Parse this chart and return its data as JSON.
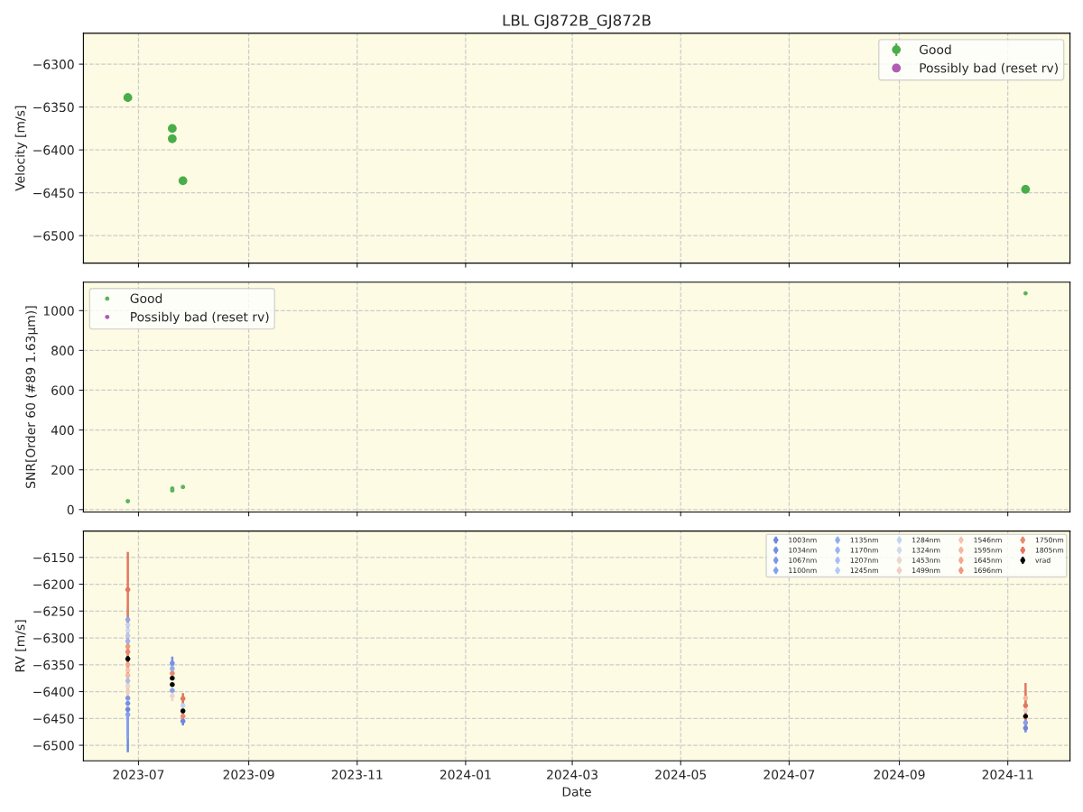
{
  "chart_data": [
    {
      "type": "scatter",
      "title": "LBL GJ872B_GJ872B",
      "ylabel": "Velocity [m/s]",
      "marker": "circle",
      "grid": true,
      "legend": "top right",
      "tick_labels": "y",
      "x": [
        "2023-06-25",
        "2023-07-20",
        "2023-07-20",
        "2023-07-26",
        "2024-11-11"
      ],
      "xlim": [
        "2023-05-31",
        "2024-12-06"
      ],
      "xticks": [
        "2023-07",
        "2023-09",
        "2023-11",
        "2024-01",
        "2024-03",
        "2024-05",
        "2024-07",
        "2024-09",
        "2024-11"
      ],
      "ylim": [
        -6532,
        -6264
      ],
      "yticks": [
        -6500,
        -6450,
        -6400,
        -6350,
        -6300
      ],
      "series": [
        {
          "name": "Good",
          "color": "#4aad4a",
          "values": [
            -6339,
            -6375,
            -6387,
            -6436,
            -6446
          ],
          "errors": [
            5,
            3,
            3,
            3,
            3
          ]
        },
        {
          "name": "Possibly bad (reset rv)",
          "color": "#b05cb0",
          "values": [
            null,
            null,
            null,
            null,
            null
          ]
        }
      ]
    },
    {
      "type": "scatter",
      "ylabel": "SNR[Order 60 (#89 1.63μm)]",
      "marker": "circle",
      "grid": true,
      "legend": "top left",
      "tick_labels": "y",
      "x": [
        "2023-06-25",
        "2023-07-20",
        "2023-07-20",
        "2023-07-26",
        "2024-11-11"
      ],
      "xlim": [
        "2023-05-31",
        "2024-12-06"
      ],
      "xticks": [
        "2023-07",
        "2023-09",
        "2023-11",
        "2024-01",
        "2024-03",
        "2024-05",
        "2024-07",
        "2024-09",
        "2024-11"
      ],
      "ylim": [
        -12,
        1143
      ],
      "yticks": [
        0,
        200,
        400,
        600,
        800,
        1000
      ],
      "series": [
        {
          "name": "Good",
          "color": "#5cb55c",
          "values": [
            42,
            106,
            96,
            114,
            1087
          ]
        },
        {
          "name": "Possibly bad (reset rv)",
          "color": "#b05cb0",
          "values": [
            null,
            null,
            null,
            null,
            null
          ]
        }
      ]
    },
    {
      "type": "scatter",
      "xlabel": "Date",
      "ylabel": "RV [m/s]",
      "marker": "circle",
      "grid": true,
      "legend": "top right",
      "x": [
        "2023-06-25",
        "2023-07-20",
        "2023-07-20",
        "2023-07-26",
        "2024-11-11"
      ],
      "xlim": [
        "2023-05-31",
        "2024-12-06"
      ],
      "xticks": [
        "2023-07",
        "2023-09",
        "2023-11",
        "2024-01",
        "2024-03",
        "2024-05",
        "2024-07",
        "2024-09",
        "2024-11"
      ],
      "ylim": [
        -6529,
        -6101
      ],
      "yticks": [
        -6500,
        -6450,
        -6400,
        -6350,
        -6300,
        -6250,
        -6200,
        -6150
      ],
      "series": [
        {
          "name": "1003nm",
          "color": "#6f87e0",
          "values": [
            -6433,
            null,
            null,
            -6455,
            -6468
          ],
          "errors": [
            80,
            null,
            null,
            8,
            8
          ]
        },
        {
          "name": "1034nm",
          "color": "#7590e6",
          "values": [
            -6422,
            -6347,
            null,
            null,
            null
          ],
          "errors": [
            60,
            12,
            null,
            null,
            null
          ]
        },
        {
          "name": "1067nm",
          "color": "#7c98ea",
          "values": [
            -6412,
            null,
            null,
            null,
            null
          ],
          "errors": [
            50,
            null,
            null,
            null,
            null
          ]
        },
        {
          "name": "1100nm",
          "color": "#84a1ee",
          "values": [
            -6443,
            null,
            -6398,
            null,
            -6458
          ],
          "errors": [
            45,
            null,
            null,
            null,
            10
          ]
        },
        {
          "name": "1135nm",
          "color": "#8eabf2",
          "values": [
            -6266,
            -6357,
            null,
            null,
            null
          ],
          "errors": [
            null,
            10,
            null,
            null,
            null
          ]
        },
        {
          "name": "1170nm",
          "color": "#99b5f5",
          "values": [
            -6306,
            null,
            null,
            null,
            null
          ],
          "errors": [
            40,
            null,
            null,
            null,
            null
          ]
        },
        {
          "name": "1207nm",
          "color": "#a6c0f6",
          "values": [
            -6380,
            null,
            null,
            null,
            null
          ],
          "errors": [
            35,
            null,
            null,
            null,
            null
          ]
        },
        {
          "name": "1245nm",
          "color": "#b3caf6",
          "values": [
            -6296,
            null,
            null,
            null,
            null
          ],
          "errors": [
            35,
            null,
            null,
            null,
            null
          ]
        },
        {
          "name": "1284nm",
          "color": "#c1d3f3",
          "values": [
            -6276,
            null,
            null,
            -6426,
            null
          ],
          "errors": [
            35,
            null,
            null,
            8,
            null
          ]
        },
        {
          "name": "1324nm",
          "color": "#cfdaef",
          "values": [
            -6286,
            null,
            null,
            null,
            null
          ],
          "errors": [
            null,
            null,
            null,
            null,
            null
          ]
        },
        {
          "name": "1453nm",
          "color": "#e9d6cf",
          "values": [
            -6390,
            null,
            -6408,
            null,
            -6435
          ],
          "errors": [
            30,
            null,
            10,
            null,
            10
          ]
        },
        {
          "name": "1499nm",
          "color": "#f0cfc1",
          "values": [
            -6400,
            null,
            null,
            null,
            null
          ],
          "errors": [
            30,
            null,
            null,
            null,
            null
          ]
        },
        {
          "name": "1546nm",
          "color": "#f4c4b0",
          "values": [
            -6360,
            null,
            null,
            null,
            null
          ],
          "errors": [
            30,
            null,
            null,
            null,
            null
          ]
        },
        {
          "name": "1595nm",
          "color": "#f5b79f",
          "values": [
            -6370,
            null,
            null,
            null,
            -6412
          ],
          "errors": [
            35,
            null,
            null,
            null,
            15
          ]
        },
        {
          "name": "1645nm",
          "color": "#f3a98e",
          "values": [
            -6350,
            null,
            null,
            null,
            null
          ],
          "errors": [
            35,
            null,
            null,
            null,
            null
          ]
        },
        {
          "name": "1696nm",
          "color": "#ef9a7e",
          "values": [
            -6316,
            null,
            null,
            null,
            null
          ],
          "errors": [
            40,
            null,
            null,
            null,
            null
          ]
        },
        {
          "name": "1750nm",
          "color": "#e9896e",
          "values": [
            -6326,
            -6366,
            null,
            -6446,
            null
          ],
          "errors": [
            45,
            null,
            null,
            8,
            null
          ]
        },
        {
          "name": "1805nm",
          "color": "#e2775f",
          "values": [
            -6210,
            null,
            null,
            -6413,
            -6426
          ],
          "errors": [
            70,
            null,
            null,
            10,
            42
          ]
        },
        {
          "name": "vrad",
          "color": "#000000",
          "values": [
            -6339,
            -6375,
            -6387,
            -6436,
            -6446
          ],
          "errors": [
            5,
            3,
            3,
            3,
            3
          ]
        }
      ]
    }
  ]
}
